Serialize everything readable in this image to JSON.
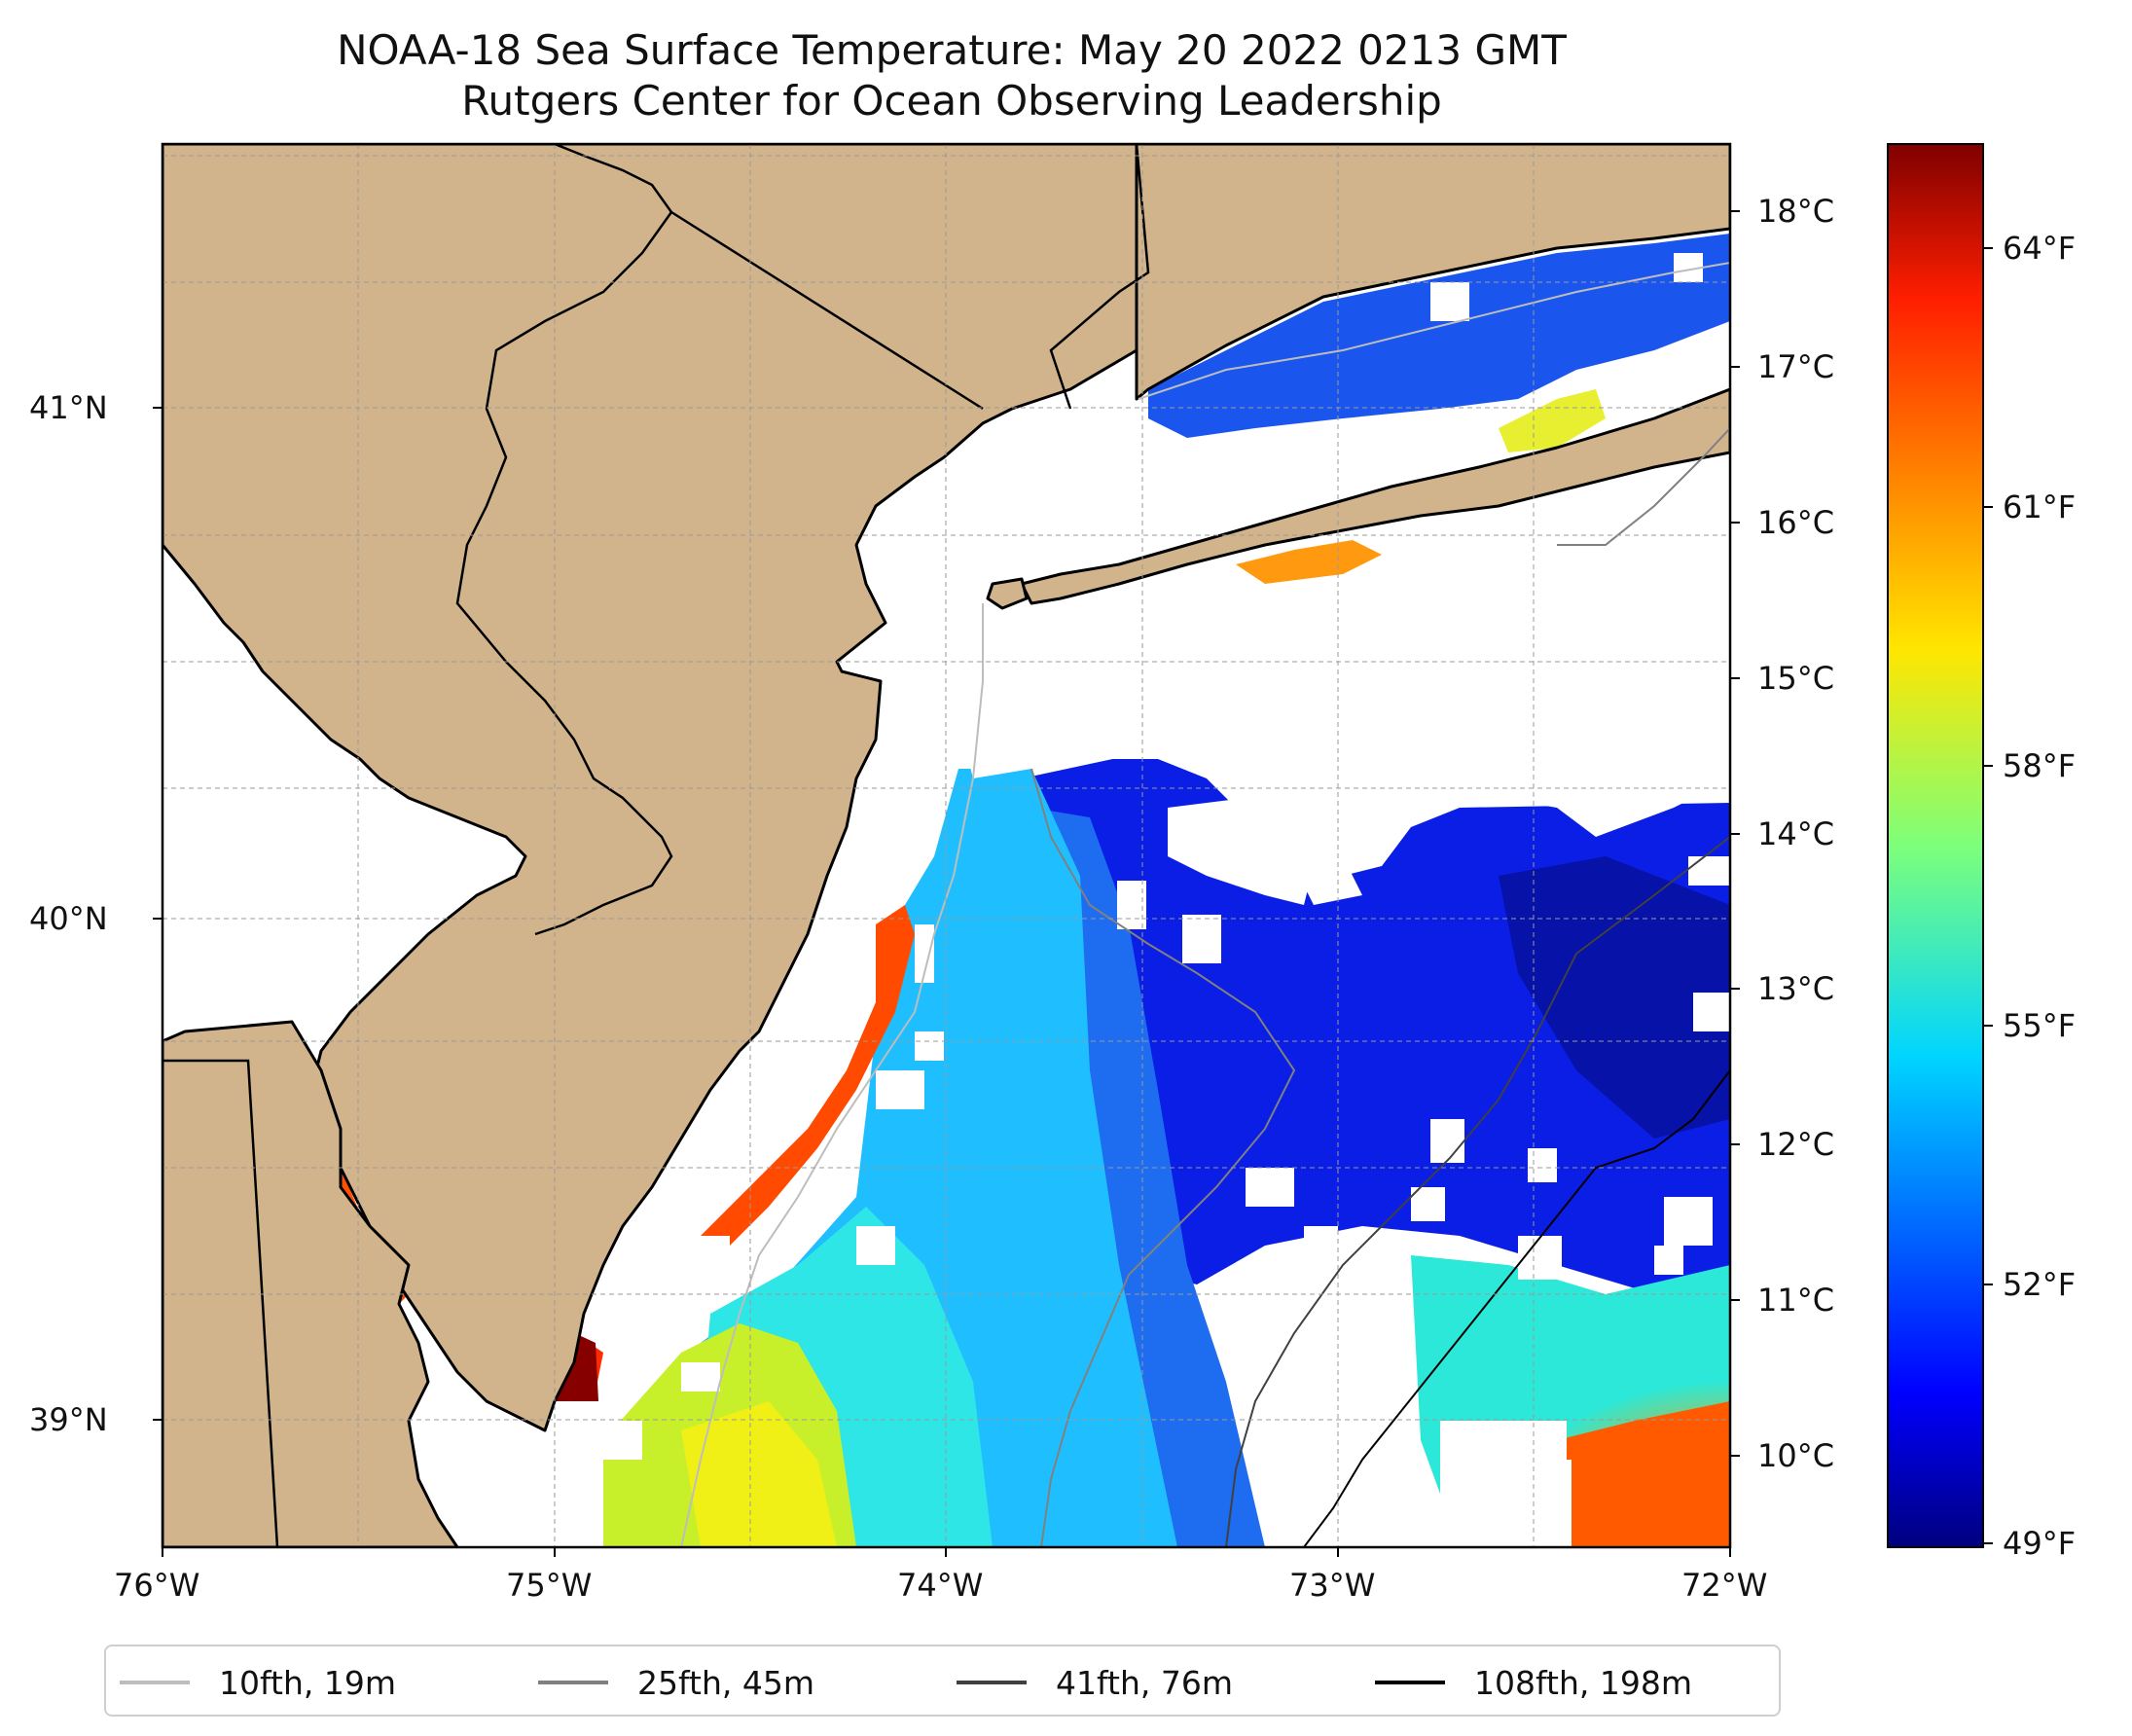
{
  "title": {
    "line1": "NOAA-18 Sea Surface Temperature: May 20 2022 0213 GMT",
    "line2": "Rutgers Center for Ocean Observing Leadership"
  },
  "map": {
    "extent": {
      "lon": [
        -76,
        -72
      ],
      "lat": [
        38.75,
        41.5
      ]
    },
    "lon_ticks": [
      "76°W",
      "75°W",
      "74°W",
      "73°W",
      "72°W"
    ],
    "lat_ticks": [
      "39°N",
      "40°N",
      "41°N"
    ],
    "land_color": "#d2b48c",
    "gridlines": true
  },
  "colorbar": {
    "colormap": "jet",
    "celsius_ticks": [
      "10°C",
      "11°C",
      "12°C",
      "13°C",
      "14°C",
      "15°C",
      "16°C",
      "17°C",
      "18°C"
    ],
    "fahrenheit_ticks": [
      "49°F",
      "52°F",
      "55°F",
      "58°F",
      "61°F",
      "64°F"
    ],
    "range_f": [
      48.9,
      65.2
    ]
  },
  "legend": [
    {
      "label": "10fth, 19m",
      "color": "#bdbdbd"
    },
    {
      "label": "25fth, 45m",
      "color": "#808080"
    },
    {
      "label": "41fth, 76m",
      "color": "#404040"
    },
    {
      "label": "108fth, 198m",
      "color": "#000000"
    }
  ]
}
